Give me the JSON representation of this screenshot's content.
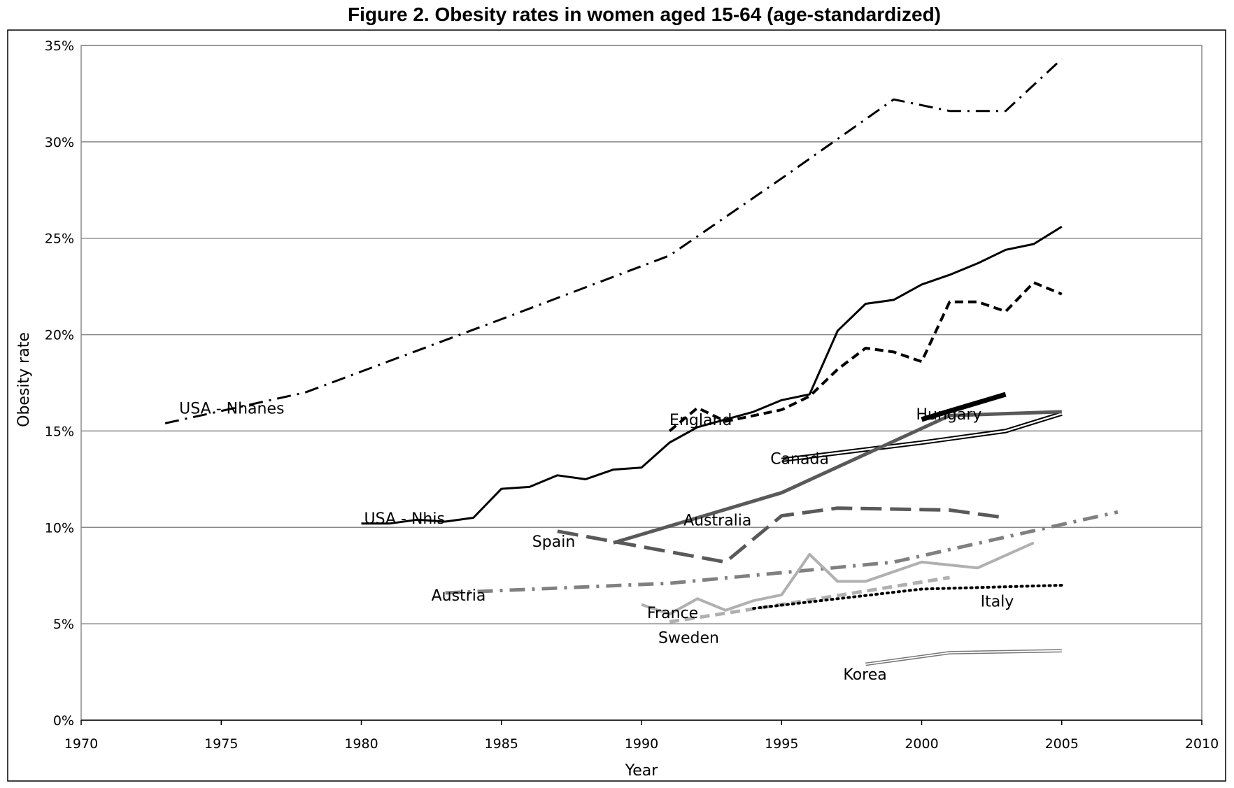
{
  "chart_data": {
    "type": "line",
    "title": "Figure 2.    Obesity rates in women aged 15-64 (age-standardized)",
    "xlabel": "Year",
    "ylabel": "Obesity rate",
    "xlim": [
      1970,
      2010
    ],
    "ylim": [
      0,
      35
    ],
    "x_ticks": [
      1970,
      1975,
      1980,
      1985,
      1990,
      1995,
      2000,
      2005,
      2010
    ],
    "x_tick_labels": [
      "1970",
      "1975",
      "1980",
      "1985",
      "1990",
      "1995",
      "2000",
      "2005",
      "2010"
    ],
    "y_ticks": [
      0,
      5,
      10,
      15,
      20,
      25,
      30,
      35
    ],
    "y_tick_labels": [
      "0%",
      "5%",
      "10%",
      "15%",
      "20%",
      "25%",
      "30%",
      "35%"
    ],
    "grid": true,
    "legend": "none (series labelled directly on plot)",
    "series": [
      {
        "name": "USA - Nhanes",
        "style": {
          "color": "#000000",
          "width": 3,
          "dash": "20,9,3,9"
        },
        "label": {
          "x": 1973.5,
          "y": 15.9
        },
        "points": [
          [
            1973,
            15.4
          ],
          [
            1978,
            17.0
          ],
          [
            1985,
            20.8
          ],
          [
            1991,
            24.1
          ],
          [
            1995,
            28.1
          ],
          [
            1999,
            32.2
          ],
          [
            2001,
            31.6
          ],
          [
            2003,
            31.6
          ],
          [
            2005,
            34.3
          ]
        ]
      },
      {
        "name": "USA - Nhis",
        "style": {
          "color": "#000000",
          "width": 3,
          "dash": ""
        },
        "label": {
          "x": 1980.1,
          "y": 10.2
        },
        "points": [
          [
            1980,
            10.2
          ],
          [
            1981,
            10.2
          ],
          [
            1982,
            10.4
          ],
          [
            1983,
            10.3
          ],
          [
            1984,
            10.5
          ],
          [
            1985,
            12.0
          ],
          [
            1986,
            12.1
          ],
          [
            1987,
            12.7
          ],
          [
            1988,
            12.5
          ],
          [
            1989,
            13.0
          ],
          [
            1990,
            13.1
          ],
          [
            1991,
            14.4
          ],
          [
            1992,
            15.2
          ],
          [
            1993,
            15.6
          ],
          [
            1994,
            16.0
          ],
          [
            1995,
            16.6
          ],
          [
            1996,
            16.9
          ],
          [
            1997,
            20.2
          ],
          [
            1998,
            21.6
          ],
          [
            1999,
            21.8
          ],
          [
            2000,
            22.6
          ],
          [
            2001,
            23.1
          ],
          [
            2002,
            23.7
          ],
          [
            2003,
            24.4
          ],
          [
            2004,
            24.7
          ],
          [
            2005,
            25.6
          ]
        ]
      },
      {
        "name": "England",
        "style": {
          "color": "#000000",
          "width": 4,
          "dash": "12,7"
        },
        "label": {
          "x": 1991,
          "y": 15.3
        },
        "points": [
          [
            1991,
            15.0
          ],
          [
            1992,
            16.2
          ],
          [
            1993,
            15.5
          ],
          [
            1994,
            15.8
          ],
          [
            1995,
            16.1
          ],
          [
            1996,
            16.8
          ],
          [
            1997,
            18.2
          ],
          [
            1998,
            19.3
          ],
          [
            1999,
            19.1
          ],
          [
            2000,
            18.6
          ],
          [
            2001,
            21.7
          ],
          [
            2002,
            21.7
          ],
          [
            2003,
            21.2
          ],
          [
            2004,
            22.7
          ],
          [
            2005,
            22.1
          ]
        ]
      },
      {
        "name": "Hungary",
        "style": {
          "color": "#000000",
          "width": 7,
          "dash": ""
        },
        "label": {
          "x": 1999.8,
          "y": 15.6
        },
        "points": [
          [
            2000,
            15.6
          ],
          [
            2003,
            16.9
          ]
        ]
      },
      {
        "name": "Canada",
        "style": {
          "color": "#000000",
          "width": 2,
          "dash": "",
          "double": true
        },
        "label": {
          "x": 1994.6,
          "y": 13.3
        },
        "points": [
          [
            1995,
            13.5
          ],
          [
            2000,
            14.4
          ],
          [
            2001,
            14.6
          ],
          [
            2003,
            15.0
          ],
          [
            2005,
            15.9
          ]
        ]
      },
      {
        "name": "Australia",
        "style": {
          "color": "#595959",
          "width": 5,
          "dash": ""
        },
        "label": {
          "x": 1991.5,
          "y": 10.1
        },
        "points": [
          [
            1989,
            9.2
          ],
          [
            1995,
            11.8
          ],
          [
            2001,
            15.8
          ],
          [
            2005,
            16.0
          ]
        ]
      },
      {
        "name": "Spain",
        "style": {
          "color": "#595959",
          "width": 5,
          "dash": "30,12"
        },
        "label": {
          "x": 1986.1,
          "y": 9.0
        },
        "points": [
          [
            1987,
            9.8
          ],
          [
            1993,
            8.2
          ],
          [
            1995,
            10.6
          ],
          [
            1997,
            11.0
          ],
          [
            2001,
            10.9
          ],
          [
            2003,
            10.5
          ]
        ]
      },
      {
        "name": "Austria",
        "style": {
          "color": "#808080",
          "width": 5,
          "dash": "22,10,4,10"
        },
        "label": {
          "x": 1982.5,
          "y": 6.2
        },
        "points": [
          [
            1983,
            6.6
          ],
          [
            1991,
            7.1
          ],
          [
            1999,
            8.2
          ],
          [
            2007,
            10.8
          ]
        ]
      },
      {
        "name": "France",
        "style": {
          "color": "#b0b0b0",
          "width": 4,
          "dash": ""
        },
        "label": {
          "x": 1990.2,
          "y": 5.3
        },
        "points": [
          [
            1990,
            6.0
          ],
          [
            1991,
            5.5
          ],
          [
            1992,
            6.3
          ],
          [
            1993,
            5.7
          ],
          [
            1994,
            6.2
          ],
          [
            1995,
            6.5
          ],
          [
            1996,
            8.6
          ],
          [
            1997,
            7.2
          ],
          [
            1998,
            7.2
          ],
          [
            2000,
            8.2
          ],
          [
            2002,
            7.9
          ],
          [
            2004,
            9.2
          ]
        ]
      },
      {
        "name": "Sweden",
        "style": {
          "color": "#b0b0b0",
          "width": 5,
          "dash": "14,8"
        },
        "label": {
          "x": 1990.6,
          "y": 4.0
        },
        "points": [
          [
            1991,
            5.1
          ],
          [
            1995,
            6.0
          ],
          [
            2001,
            7.4
          ]
        ]
      },
      {
        "name": "Italy",
        "style": {
          "color": "#000000",
          "width": 4,
          "dash": "2,6"
        },
        "label": {
          "x": 2002.1,
          "y": 5.9
        },
        "points": [
          [
            1994,
            5.8
          ],
          [
            2000,
            6.8
          ],
          [
            2005,
            7.0
          ]
        ]
      },
      {
        "name": "Korea",
        "style": {
          "color": "#777777",
          "width": 1.5,
          "dash": "",
          "double": true
        },
        "label": {
          "x": 1997.2,
          "y": 2.1
        },
        "points": [
          [
            1998,
            2.9
          ],
          [
            2001,
            3.5
          ],
          [
            2005,
            3.6
          ]
        ]
      }
    ]
  }
}
